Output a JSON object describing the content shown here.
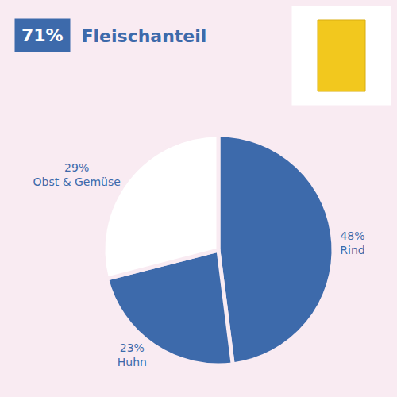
{
  "chart_data": {
    "type": "pie",
    "title": "Fleischanteil",
    "annotations": [
      {
        "value": 71,
        "label": "71%"
      }
    ],
    "categories": [
      "Rind",
      "Huhn",
      "Obst & Gemüse"
    ],
    "values": [
      48,
      23,
      29
    ],
    "value_labels": [
      "48%",
      "23%",
      "29%"
    ],
    "colors": [
      "#3d6aab",
      "#3d6aab",
      "#ffffff"
    ],
    "data_labels": true
  }
}
